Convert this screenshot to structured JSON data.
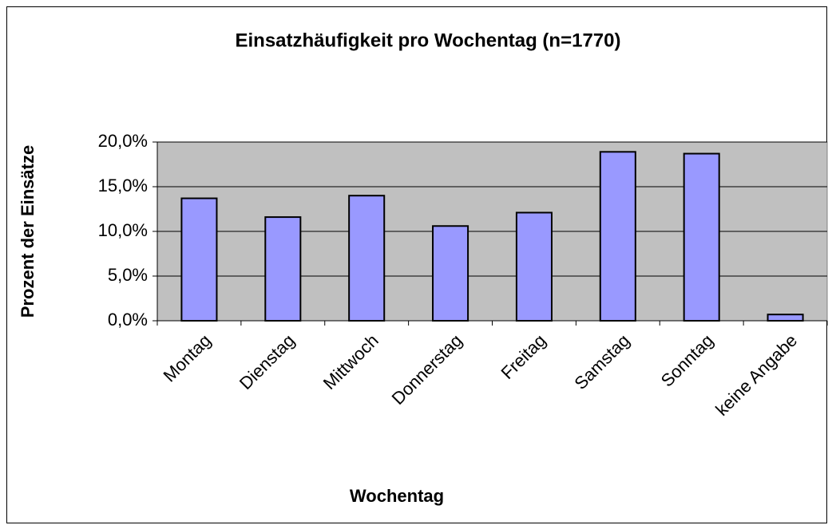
{
  "chart_data": {
    "type": "bar",
    "title": "Einsatzhäufigkeit pro Wochentag (n=1770)",
    "x_label": "Wochentag",
    "y_label": "Prozent der Einsätze",
    "categories": [
      "Montag",
      "Dienstag",
      "Mittwoch",
      "Donnerstag",
      "Freitag",
      "Samstag",
      "Sonntag",
      "keine Angabe"
    ],
    "values": [
      13.7,
      11.6,
      14.0,
      10.6,
      12.1,
      18.9,
      18.7,
      0.7
    ],
    "color": "#9999ff",
    "ylim": [
      0,
      20
    ],
    "yticks": [
      {
        "value": 0,
        "label": "0,0%"
      },
      {
        "value": 5,
        "label": "5,0%"
      },
      {
        "value": 10,
        "label": "10,0%"
      },
      {
        "value": 15,
        "label": "15,0%"
      },
      {
        "value": 20,
        "label": "20,0%"
      }
    ],
    "grid": true
  }
}
